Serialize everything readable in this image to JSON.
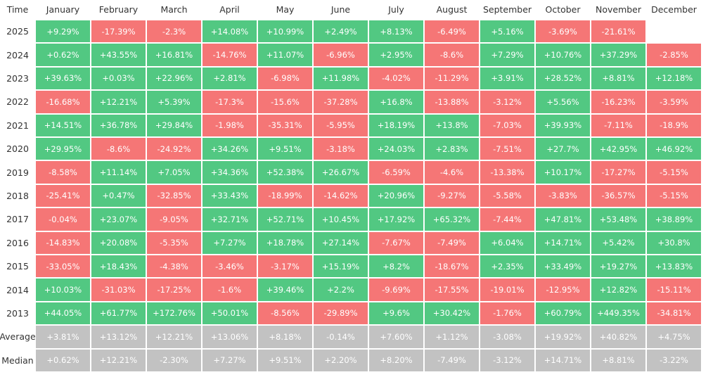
{
  "table": {
    "header": [
      "Time",
      "January",
      "February",
      "March",
      "April",
      "May",
      "June",
      "July",
      "August",
      "September",
      "October",
      "November",
      "December"
    ],
    "rows": [
      {
        "label": "2025",
        "cells": [
          "+9.29%",
          "-17.39%",
          "-2.3%",
          "+14.08%",
          "+10.99%",
          "+2.49%",
          "+8.13%",
          "-6.49%",
          "+5.16%",
          "-3.69%",
          "-21.61%",
          null
        ]
      },
      {
        "label": "2024",
        "cells": [
          "+0.62%",
          "+43.55%",
          "+16.81%",
          "-14.76%",
          "+11.07%",
          "-6.96%",
          "+2.95%",
          "-8.6%",
          "+7.29%",
          "+10.76%",
          "+37.29%",
          "-2.85%"
        ]
      },
      {
        "label": "2023",
        "cells": [
          "+39.63%",
          "+0.03%",
          "+22.96%",
          "+2.81%",
          "-6.98%",
          "+11.98%",
          "-4.02%",
          "-11.29%",
          "+3.91%",
          "+28.52%",
          "+8.81%",
          "+12.18%"
        ]
      },
      {
        "label": "2022",
        "cells": [
          "-16.68%",
          "+12.21%",
          "+5.39%",
          "-17.3%",
          "-15.6%",
          "-37.28%",
          "+16.8%",
          "-13.88%",
          "-3.12%",
          "+5.56%",
          "-16.23%",
          "-3.59%"
        ]
      },
      {
        "label": "2021",
        "cells": [
          "+14.51%",
          "+36.78%",
          "+29.84%",
          "-1.98%",
          "-35.31%",
          "-5.95%",
          "+18.19%",
          "+13.8%",
          "-7.03%",
          "+39.93%",
          "-7.11%",
          "-18.9%"
        ]
      },
      {
        "label": "2020",
        "cells": [
          "+29.95%",
          "-8.6%",
          "-24.92%",
          "+34.26%",
          "+9.51%",
          "-3.18%",
          "+24.03%",
          "+2.83%",
          "-7.51%",
          "+27.7%",
          "+42.95%",
          "+46.92%"
        ]
      },
      {
        "label": "2019",
        "cells": [
          "-8.58%",
          "+11.14%",
          "+7.05%",
          "+34.36%",
          "+52.38%",
          "+26.67%",
          "-6.59%",
          "-4.6%",
          "-13.38%",
          "+10.17%",
          "-17.27%",
          "-5.15%"
        ]
      },
      {
        "label": "2018",
        "cells": [
          "-25.41%",
          "+0.47%",
          "-32.85%",
          "+33.43%",
          "-18.99%",
          "-14.62%",
          "+20.96%",
          "-9.27%",
          "-5.58%",
          "-3.83%",
          "-36.57%",
          "-5.15%"
        ]
      },
      {
        "label": "2017",
        "cells": [
          "-0.04%",
          "+23.07%",
          "-9.05%",
          "+32.71%",
          "+52.71%",
          "+10.45%",
          "+17.92%",
          "+65.32%",
          "-7.44%",
          "+47.81%",
          "+53.48%",
          "+38.89%"
        ]
      },
      {
        "label": "2016",
        "cells": [
          "-14.83%",
          "+20.08%",
          "-5.35%",
          "+7.27%",
          "+18.78%",
          "+27.14%",
          "-7.67%",
          "-7.49%",
          "+6.04%",
          "+14.71%",
          "+5.42%",
          "+30.8%"
        ]
      },
      {
        "label": "2015",
        "cells": [
          "-33.05%",
          "+18.43%",
          "-4.38%",
          "-3.46%",
          "-3.17%",
          "+15.19%",
          "+8.2%",
          "-18.67%",
          "+2.35%",
          "+33.49%",
          "+19.27%",
          "+13.83%"
        ]
      },
      {
        "label": "2014",
        "cells": [
          "+10.03%",
          "-31.03%",
          "-17.25%",
          "-1.6%",
          "+39.46%",
          "+2.2%",
          "-9.69%",
          "-17.55%",
          "-19.01%",
          "-12.95%",
          "+12.82%",
          "-15.11%"
        ]
      },
      {
        "label": "2013",
        "cells": [
          "+44.05%",
          "+61.77%",
          "+172.76%",
          "+50.01%",
          "-8.56%",
          "-29.89%",
          "+9.6%",
          "+30.42%",
          "-1.76%",
          "+60.79%",
          "+449.35%",
          "-34.81%"
        ]
      }
    ],
    "summary": [
      {
        "label": "Average",
        "cells": [
          "+3.81%",
          "+13.12%",
          "+12.21%",
          "+13.06%",
          "+8.18%",
          "-0.14%",
          "+7.60%",
          "+1.12%",
          "-3.08%",
          "+19.92%",
          "+40.82%",
          "+4.75%"
        ]
      },
      {
        "label": "Median",
        "cells": [
          "+0.62%",
          "+12.21%",
          "-2.30%",
          "+7.27%",
          "+9.51%",
          "+2.20%",
          "+8.20%",
          "-7.49%",
          "-3.12%",
          "+14.71%",
          "+8.81%",
          "-3.22%"
        ]
      }
    ]
  }
}
